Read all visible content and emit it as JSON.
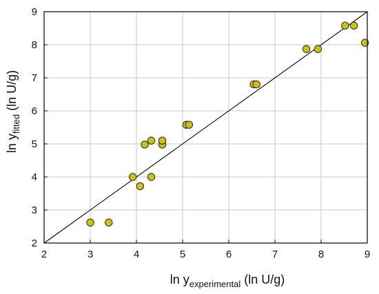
{
  "chart_data": {
    "type": "scatter",
    "xlabel": {
      "prefix": "ln y",
      "subscript": "experimental",
      "suffix": " (ln U/g)"
    },
    "ylabel": {
      "prefix": "ln y",
      "subscript": "fitted",
      "suffix": " (ln U/g)"
    },
    "xlim": [
      2,
      9
    ],
    "ylim": [
      2,
      9
    ],
    "xticks": [
      "2",
      "3",
      "4",
      "5",
      "6",
      "7",
      "8",
      "9"
    ],
    "yticks": [
      "2",
      "3",
      "4",
      "5",
      "6",
      "7",
      "8",
      "9"
    ],
    "grid": true,
    "reference_line": {
      "from": [
        2,
        2
      ],
      "to": [
        9,
        9
      ]
    },
    "points": [
      {
        "x": 3.0,
        "y": 2.62
      },
      {
        "x": 3.4,
        "y": 2.62
      },
      {
        "x": 3.92,
        "y": 4.0
      },
      {
        "x": 4.08,
        "y": 3.72
      },
      {
        "x": 4.18,
        "y": 4.98
      },
      {
        "x": 4.32,
        "y": 5.1
      },
      {
        "x": 4.32,
        "y": 4.0
      },
      {
        "x": 4.56,
        "y": 4.98
      },
      {
        "x": 4.56,
        "y": 5.1
      },
      {
        "x": 5.08,
        "y": 5.58
      },
      {
        "x": 5.14,
        "y": 5.58
      },
      {
        "x": 6.54,
        "y": 6.8
      },
      {
        "x": 6.6,
        "y": 6.8
      },
      {
        "x": 7.68,
        "y": 7.87
      },
      {
        "x": 7.93,
        "y": 7.87
      },
      {
        "x": 8.52,
        "y": 8.58
      },
      {
        "x": 8.71,
        "y": 8.58
      },
      {
        "x": 8.95,
        "y": 8.06
      }
    ],
    "marker_color": "#c9c21c",
    "marker_edge": "#2b2b00",
    "line_color": "#000000",
    "grid_color": "#c8c8c8",
    "frame_color": "#000000"
  }
}
